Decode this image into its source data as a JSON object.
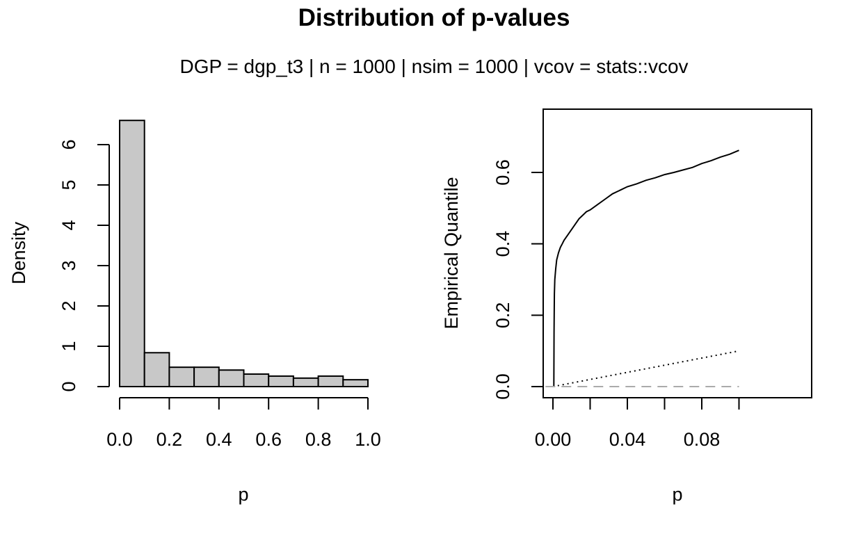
{
  "title": "Distribution of p-values",
  "subtitle": "DGP = dgp_t3 | n = 1000 | nsim = 1000 | vcov = stats::vcov",
  "chart_data": [
    {
      "type": "bar",
      "subtype": "histogram",
      "xlabel": "p",
      "ylabel": "Density",
      "bins": [
        [
          0.0,
          0.1
        ],
        [
          0.1,
          0.2
        ],
        [
          0.2,
          0.3
        ],
        [
          0.3,
          0.4
        ],
        [
          0.4,
          0.5
        ],
        [
          0.5,
          0.6
        ],
        [
          0.6,
          0.7
        ],
        [
          0.7,
          0.8
        ],
        [
          0.8,
          0.9
        ],
        [
          0.9,
          1.0
        ]
      ],
      "values": [
        6.6,
        0.84,
        0.48,
        0.48,
        0.41,
        0.31,
        0.26,
        0.21,
        0.26,
        0.17
      ],
      "xticks": [
        "0.0",
        "0.2",
        "0.4",
        "0.6",
        "0.8",
        "1.0"
      ],
      "yticks": [
        "0",
        "1",
        "2",
        "3",
        "4",
        "5",
        "6"
      ],
      "xlim": [
        0,
        1
      ],
      "ylim": [
        0,
        6.6
      ],
      "bar_color": "#c8c8c8",
      "grid": false
    },
    {
      "type": "line",
      "xlabel": "p",
      "ylabel": "Empirical Quantile",
      "xticks": [
        "0.00",
        "0.04",
        "0.08"
      ],
      "yticks": [
        "0.0",
        "0.2",
        "0.4",
        "0.6"
      ],
      "xlim": [
        0,
        0.1
      ],
      "ylim": [
        0,
        0.67
      ],
      "grid": false,
      "series": [
        {
          "style": "solid",
          "color": "#000000",
          "x": [
            0,
            0.0005,
            0.0006,
            0.0007,
            0.0008,
            0.001,
            0.0015,
            0.002,
            0.003,
            0.004,
            0.005,
            0.006,
            0.008,
            0.01,
            0.012,
            0.014,
            0.016,
            0.018,
            0.02,
            0.024,
            0.028,
            0.032,
            0.036,
            0.04,
            0.045,
            0.05,
            0.055,
            0.06,
            0.065,
            0.07,
            0.075,
            0.08,
            0.085,
            0.09,
            0.095,
            0.1
          ],
          "y": [
            0,
            0,
            0.15,
            0.22,
            0.26,
            0.3,
            0.33,
            0.355,
            0.375,
            0.39,
            0.4,
            0.41,
            0.425,
            0.44,
            0.455,
            0.47,
            0.48,
            0.49,
            0.495,
            0.51,
            0.525,
            0.54,
            0.55,
            0.56,
            0.568,
            0.578,
            0.585,
            0.594,
            0.6,
            0.607,
            0.614,
            0.625,
            0.633,
            0.643,
            0.651,
            0.662
          ]
        },
        {
          "style": "dotted",
          "color": "#000000",
          "x": [
            0,
            0.1
          ],
          "y": [
            0,
            0.1
          ]
        },
        {
          "style": "dashed",
          "color": "#aaaaaa",
          "x": [
            -0.004,
            0.1
          ],
          "y": [
            0,
            0
          ]
        }
      ]
    }
  ]
}
